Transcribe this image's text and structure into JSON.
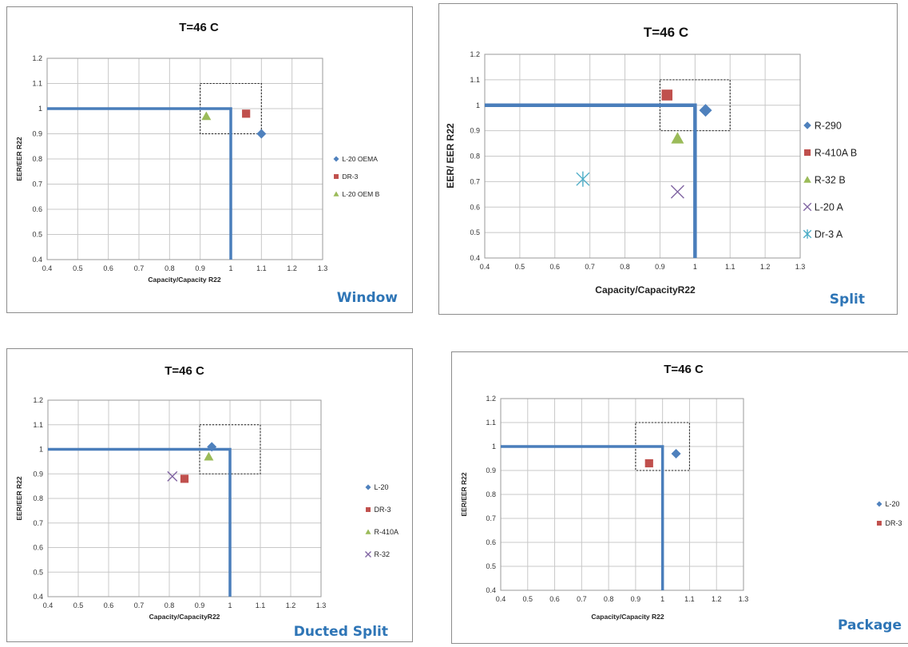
{
  "charts": [
    {
      "caption": "Window",
      "chart_data": {
        "type": "scatter",
        "title": "T=46 C",
        "xlabel": "Capacity/Capacity R22",
        "ylabel": "EER/EER R22",
        "xlim": [
          0.4,
          1.3
        ],
        "ylim": [
          0.4,
          1.2
        ],
        "xticks": [
          "0.4",
          "0.5",
          "0.6",
          "0.7",
          "0.8",
          "0.9",
          "1",
          "1.1",
          "1.2",
          "1.3"
        ],
        "yticks": [
          "0.4",
          "0.5",
          "0.6",
          "0.7",
          "0.8",
          "0.9",
          "1",
          "1.1",
          "1.2"
        ],
        "grid": true,
        "legend_position": "right",
        "reference_line": {
          "x": [
            0.4,
            1.0,
            1.0
          ],
          "y": [
            1.0,
            1.0,
            0.4
          ],
          "color": "#4a7ebb"
        },
        "tolerance_box": {
          "x": [
            0.9,
            1.1
          ],
          "y": [
            0.9,
            1.1
          ]
        },
        "series": [
          {
            "name": "L-20 OEMA",
            "marker": "diamond",
            "color": "#4f81bd",
            "points": [
              [
                1.1,
                0.9
              ]
            ]
          },
          {
            "name": "DR-3",
            "marker": "square",
            "color": "#c0504d",
            "points": [
              [
                1.05,
                0.98
              ]
            ]
          },
          {
            "name": "L-20 OEM B",
            "marker": "triangle",
            "color": "#9bbb59",
            "points": [
              [
                0.92,
                0.97
              ]
            ]
          }
        ]
      }
    },
    {
      "caption": "Split",
      "chart_data": {
        "type": "scatter",
        "title": "T=46 C",
        "xlabel": "Capacity/CapacityR22",
        "ylabel": "EER/ EER R22",
        "xlim": [
          0.4,
          1.3
        ],
        "ylim": [
          0.4,
          1.2
        ],
        "xticks": [
          "0.4",
          "0.5",
          "0.6",
          "0.7",
          "0.8",
          "0.9",
          "1",
          "1.1",
          "1.2",
          "1.3"
        ],
        "yticks": [
          "0.4",
          "0.5",
          "0.6",
          "0.7",
          "0.8",
          "0.9",
          "1",
          "1.1",
          "1.2"
        ],
        "grid": true,
        "legend_position": "right",
        "reference_line": {
          "x": [
            0.4,
            1.0,
            1.0
          ],
          "y": [
            1.0,
            1.0,
            0.4
          ],
          "color": "#4a7ebb"
        },
        "tolerance_box": {
          "x": [
            0.9,
            1.1
          ],
          "y": [
            0.9,
            1.1
          ]
        },
        "series": [
          {
            "name": "R-290",
            "marker": "diamond",
            "color": "#4f81bd",
            "points": [
              [
                1.03,
                0.98
              ]
            ]
          },
          {
            "name": "R-410A B",
            "marker": "square",
            "color": "#c0504d",
            "points": [
              [
                0.92,
                1.04
              ]
            ]
          },
          {
            "name": "R-32 B",
            "marker": "triangle",
            "color": "#9bbb59",
            "points": [
              [
                0.95,
                0.87
              ]
            ]
          },
          {
            "name": "L-20 A",
            "marker": "x",
            "color": "#8064a2",
            "points": [
              [
                0.95,
                0.66
              ]
            ]
          },
          {
            "name": "Dr-3 A",
            "marker": "star",
            "color": "#4bacc6",
            "points": [
              [
                0.68,
                0.71
              ]
            ]
          }
        ]
      }
    },
    {
      "caption": "Ducted Split",
      "chart_data": {
        "type": "scatter",
        "title": "T=46 C",
        "xlabel": "Capacity/CapacityR22",
        "ylabel": "EER/EER R22",
        "xlim": [
          0.4,
          1.3
        ],
        "ylim": [
          0.4,
          1.2
        ],
        "xticks": [
          "0.4",
          "0.5",
          "0.6",
          "0.7",
          "0.8",
          "0.9",
          "1",
          "1.1",
          "1.2",
          "1.3"
        ],
        "yticks": [
          "0.4",
          "0.5",
          "0.6",
          "0.7",
          "0.8",
          "0.9",
          "1",
          "1.1",
          "1.2"
        ],
        "grid": true,
        "legend_position": "right",
        "reference_line": {
          "x": [
            0.4,
            1.0,
            1.0
          ],
          "y": [
            1.0,
            1.0,
            0.4
          ],
          "color": "#4a7ebb"
        },
        "tolerance_box": {
          "x": [
            0.9,
            1.1
          ],
          "y": [
            0.9,
            1.1
          ]
        },
        "series": [
          {
            "name": "L-20",
            "marker": "diamond",
            "color": "#4f81bd",
            "points": [
              [
                0.94,
                1.01
              ]
            ]
          },
          {
            "name": "DR-3",
            "marker": "square",
            "color": "#c0504d",
            "points": [
              [
                0.85,
                0.88
              ]
            ]
          },
          {
            "name": "R-410A",
            "marker": "triangle",
            "color": "#9bbb59",
            "points": [
              [
                0.93,
                0.97
              ]
            ]
          },
          {
            "name": "R-32",
            "marker": "x",
            "color": "#8064a2",
            "points": [
              [
                0.81,
                0.89
              ]
            ]
          }
        ]
      }
    },
    {
      "caption": "Package",
      "chart_data": {
        "type": "scatter",
        "title": "T=46 C",
        "xlabel": "Capacity/Capacity R22",
        "ylabel": "EER/EER R22",
        "xlim": [
          0.4,
          1.3
        ],
        "ylim": [
          0.4,
          1.2
        ],
        "xticks": [
          "0.4",
          "0.5",
          "0.6",
          "0.7",
          "0.8",
          "0.9",
          "1",
          "1.1",
          "1.2",
          "1.3"
        ],
        "yticks": [
          "0.4",
          "0.5",
          "0.6",
          "0.7",
          "0.8",
          "0.9",
          "1",
          "1.1",
          "1.2"
        ],
        "grid": true,
        "legend_position": "right",
        "reference_line": {
          "x": [
            0.4,
            1.0,
            1.0
          ],
          "y": [
            1.0,
            1.0,
            0.4
          ],
          "color": "#4a7ebb"
        },
        "tolerance_box": {
          "x": [
            0.9,
            1.1
          ],
          "y": [
            0.9,
            1.1
          ]
        },
        "series": [
          {
            "name": "L-20",
            "marker": "diamond",
            "color": "#4f81bd",
            "points": [
              [
                1.05,
                0.97
              ]
            ]
          },
          {
            "name": "DR-3",
            "marker": "square",
            "color": "#c0504d",
            "points": [
              [
                0.95,
                0.93
              ]
            ]
          }
        ]
      }
    }
  ]
}
